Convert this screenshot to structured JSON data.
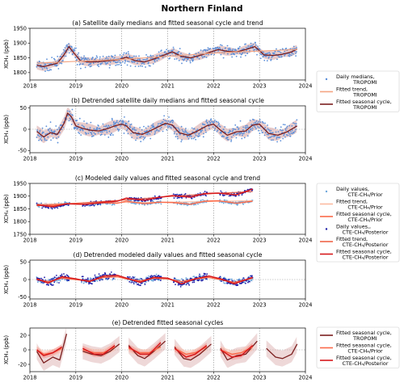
{
  "figure_title": "Northern Finland",
  "colors": {
    "tropomi_points": "#5b8fd9",
    "tropomi_trend": "#f4a582",
    "tropomi_cycle": "#7b1e1e",
    "tropomi_band": "#d9a8a8",
    "prior_points": "#6fa8dc",
    "prior_trend": "#fcbba1",
    "prior_cycle": "#fb6a4a",
    "posterior_points": "#1f1fa8",
    "posterior_trend": "#ef6548",
    "posterior_cycle": "#d7191c"
  },
  "legends": {
    "a": [
      {
        "kind": "points",
        "label": "Daily medians,",
        "label2": "TROPOMI"
      },
      {
        "kind": "trend",
        "label": "Fitted trend,",
        "label2": "TROPOMI"
      },
      {
        "kind": "cycle",
        "label": "Fitted seasonal cycle,",
        "label2": "TROPOMI"
      }
    ],
    "c": [
      {
        "kind": "prior_points",
        "label": "Daily values,",
        "label2": "CTE-CH₄/Prior"
      },
      {
        "kind": "prior_trend",
        "label": "Fitted trend,",
        "label2": "CTE-CH₄/Prior"
      },
      {
        "kind": "prior_cycle",
        "label": "Fitted seasonal cycle,",
        "label2": "CTE-CH₄/Prior"
      },
      {
        "kind": "post_points",
        "label": "Daily values,,",
        "label2": "CTE-CH₄/Posterior"
      },
      {
        "kind": "post_trend",
        "label": "Fitted trend,",
        "label2": "CTE-CH₄/Posterior"
      },
      {
        "kind": "post_cycle",
        "label": "Fitted seasonal cycle,",
        "label2": "CTE-CH₄/Posterior"
      }
    ],
    "e": [
      {
        "kind": "cycle",
        "label": "Fitted seasonal cycle,",
        "label2": "TROPOMI"
      },
      {
        "kind": "prior_cycle",
        "label": "Fitted seasonal cycle,",
        "label2": "CTE-CH₄/Prior"
      },
      {
        "kind": "post_cycle",
        "label": "Fitted seasonal cycle,",
        "label2": "CTE-CH₄/Posterior"
      }
    ]
  },
  "chart_data": [
    {
      "id": "a",
      "type": "scatter",
      "title": "(a) Satellite daily medians and fitted seasonal cycle and trend",
      "ylabel": "XCH₄ (ppb)",
      "xlim": [
        2018,
        2024
      ],
      "ylim": [
        1775,
        1950
      ],
      "xticks": [
        2018,
        2019,
        2020,
        2021,
        2022,
        2023,
        2024
      ],
      "yticks": [
        1800,
        1850,
        1900,
        1950
      ],
      "vlines": [
        2019,
        2020,
        2021,
        2022,
        2023
      ],
      "series": [
        {
          "name": "Fitted seasonal cycle, TROPOMI",
          "kind": "cycle",
          "x": [
            2018.15,
            2018.3,
            2018.45,
            2018.6,
            2018.75,
            2018.85,
            2018.95,
            2019.1,
            2019.3,
            2019.5,
            2019.7,
            2019.9,
            2020.1,
            2020.3,
            2020.5,
            2020.7,
            2020.9,
            2021.1,
            2021.3,
            2021.5,
            2021.7,
            2021.9,
            2022.1,
            2022.3,
            2022.5,
            2022.7,
            2022.9,
            2023.1,
            2023.3,
            2023.5,
            2023.7,
            2023.82
          ],
          "y": [
            1825,
            1820,
            1826,
            1832,
            1862,
            1888,
            1868,
            1840,
            1836,
            1837,
            1840,
            1843,
            1852,
            1840,
            1836,
            1846,
            1858,
            1870,
            1855,
            1850,
            1858,
            1868,
            1878,
            1872,
            1870,
            1878,
            1888,
            1860,
            1858,
            1862,
            1870,
            1880
          ]
        },
        {
          "name": "Fitted trend, TROPOMI",
          "kind": "trend",
          "x": [
            2018.15,
            2019.0,
            2020.0,
            2021.0,
            2022.0,
            2023.0,
            2023.82
          ],
          "y": [
            1832,
            1838,
            1845,
            1855,
            1866,
            1873,
            1878
          ]
        }
      ]
    },
    {
      "id": "b",
      "type": "scatter",
      "title": "(b) Detrended satellite daily medians and fitted seasonal cycle",
      "ylabel": "XCH₄ (ppb)",
      "xlim": [
        2018,
        2024
      ],
      "ylim": [
        -55,
        55
      ],
      "xticks": [
        2018,
        2019,
        2020,
        2021,
        2022,
        2023,
        2024
      ],
      "yticks": [
        -50,
        0,
        50
      ],
      "vlines": [
        2019,
        2020,
        2021,
        2022,
        2023
      ],
      "series": [
        {
          "name": "Fitted seasonal cycle, TROPOMI",
          "kind": "cycle",
          "x": [
            2018.15,
            2018.3,
            2018.45,
            2018.6,
            2018.75,
            2018.82,
            2018.9,
            2019.0,
            2019.15,
            2019.3,
            2019.5,
            2019.7,
            2019.85,
            2020.0,
            2020.1,
            2020.25,
            2020.45,
            2020.65,
            2020.8,
            2020.95,
            2021.1,
            2021.25,
            2021.45,
            2021.65,
            2021.85,
            2022.0,
            2022.15,
            2022.3,
            2022.5,
            2022.7,
            2022.85,
            2023.0,
            2023.2,
            2023.4,
            2023.6,
            2023.82
          ],
          "y": [
            -5,
            -18,
            -8,
            -12,
            15,
            38,
            30,
            8,
            2,
            -2,
            -4,
            2,
            8,
            12,
            8,
            -8,
            -12,
            -2,
            6,
            14,
            10,
            -8,
            -14,
            -4,
            8,
            12,
            -2,
            -14,
            -6,
            -4,
            10,
            12,
            -10,
            -14,
            -6,
            8
          ]
        }
      ]
    },
    {
      "id": "c",
      "type": "scatter",
      "title": "(c) Modeled daily values and fitted seasonal cycle and trend",
      "ylabel": "XCH₄ (ppb)",
      "xlim": [
        2018,
        2024
      ],
      "ylim": [
        1750,
        1950
      ],
      "xticks": [
        2018,
        2019,
        2020,
        2021,
        2022,
        2023,
        2024
      ],
      "yticks": [
        1750,
        1800,
        1850,
        1900,
        1950
      ],
      "vlines": [
        2019,
        2020,
        2021,
        2022,
        2023
      ],
      "series": [
        {
          "name": "Fitted trend, CTE-CH₄/Prior",
          "kind": "prior_trend",
          "x": [
            2018.15,
            2019.0,
            2020.0,
            2021.0,
            2022.0,
            2022.85
          ],
          "y": [
            1868,
            1872,
            1875,
            1876,
            1879,
            1882
          ]
        },
        {
          "name": "Fitted trend, CTE-CH₄/Posterior",
          "kind": "post_trend",
          "x": [
            2018.15,
            2019.0,
            2020.0,
            2021.0,
            2022.0,
            2022.85
          ],
          "y": [
            1862,
            1872,
            1884,
            1898,
            1910,
            1918
          ]
        },
        {
          "name": "Fitted seasonal cycle, CTE-CH₄/Prior",
          "kind": "prior_cycle",
          "x": [
            2018.15,
            2018.5,
            2018.8,
            2019.2,
            2019.6,
            2019.9,
            2020.1,
            2020.5,
            2020.8,
            2021.1,
            2021.5,
            2021.8,
            2022.1,
            2022.5,
            2022.85
          ],
          "y": [
            1866,
            1862,
            1870,
            1868,
            1874,
            1872,
            1880,
            1870,
            1876,
            1875,
            1868,
            1880,
            1882,
            1872,
            1880
          ]
        },
        {
          "name": "Fitted seasonal cycle, CTE-CH₄/Posterior",
          "kind": "post_cycle",
          "x": [
            2018.15,
            2018.5,
            2018.8,
            2019.2,
            2019.6,
            2019.9,
            2020.1,
            2020.5,
            2020.8,
            2021.1,
            2021.5,
            2021.8,
            2022.1,
            2022.5,
            2022.85
          ],
          "y": [
            1866,
            1858,
            1870,
            1868,
            1876,
            1880,
            1892,
            1884,
            1895,
            1902,
            1896,
            1910,
            1912,
            1905,
            1928
          ]
        }
      ]
    },
    {
      "id": "d",
      "type": "scatter",
      "title": "(d) Detrended modeled daily values and fitted seasonal cycle",
      "ylabel": "XCH₄ (ppb)",
      "xlim": [
        2018,
        2024
      ],
      "ylim": [
        -55,
        55
      ],
      "xticks": [
        2018,
        2019,
        2020,
        2021,
        2022,
        2023,
        2024
      ],
      "yticks": [
        -50,
        0,
        50
      ],
      "vlines": [
        2019,
        2020,
        2021,
        2022,
        2023
      ],
      "series": [
        {
          "name": "Fitted seasonal cycle, CTE-CH₄/Prior",
          "kind": "prior_cycle",
          "x": [
            2018.15,
            2018.4,
            2018.7,
            2019.0,
            2019.3,
            2019.6,
            2019.9,
            2020.1,
            2020.4,
            2020.7,
            2021.0,
            2021.3,
            2021.6,
            2021.9,
            2022.15,
            2022.45,
            2022.85
          ],
          "y": [
            0,
            -6,
            4,
            0,
            -4,
            6,
            8,
            2,
            -4,
            4,
            2,
            -6,
            2,
            6,
            0,
            -8,
            4
          ]
        },
        {
          "name": "Fitted seasonal cycle, CTE-CH₄/Posterior",
          "kind": "post_cycle",
          "x": [
            2018.15,
            2018.4,
            2018.7,
            2019.0,
            2019.3,
            2019.6,
            2019.9,
            2020.1,
            2020.4,
            2020.7,
            2021.0,
            2021.3,
            2021.6,
            2021.9,
            2022.15,
            2022.45,
            2022.85
          ],
          "y": [
            2,
            -10,
            8,
            2,
            -6,
            10,
            12,
            4,
            -8,
            6,
            4,
            -12,
            2,
            10,
            2,
            -12,
            6
          ]
        }
      ]
    },
    {
      "id": "e",
      "type": "line",
      "title": "(e) Detrended fitted seasonal cycles",
      "ylabel": "XCH₄ (ppb)",
      "xlim": [
        2018,
        2024
      ],
      "ylim": [
        -30,
        30
      ],
      "xticks": [
        2018,
        2019,
        2020,
        2021,
        2022,
        2023,
        2024
      ],
      "yticks": [
        -20,
        0,
        20
      ],
      "vlines": [
        2019,
        2020,
        2021,
        2022,
        2023
      ],
      "series": [
        {
          "name": "Fitted seasonal cycle, TROPOMI",
          "kind": "cycle",
          "segments": [
            {
              "x": [
                2018.15,
                2018.3,
                2018.5,
                2018.65,
                2018.8
              ],
              "y": [
                -2,
                -18,
                -10,
                -14,
                22
              ]
            },
            {
              "x": [
                2019.15,
                2019.35,
                2019.55,
                2019.75,
                2019.95
              ],
              "y": [
                -2,
                -6,
                -8,
                -2,
                8
              ]
            },
            {
              "x": [
                2020.15,
                2020.35,
                2020.5,
                2020.7,
                2020.95
              ],
              "y": [
                6,
                -8,
                -12,
                -2,
                12
              ]
            },
            {
              "x": [
                2021.15,
                2021.35,
                2021.5,
                2021.7,
                2021.95
              ],
              "y": [
                4,
                -12,
                -14,
                -6,
                8
              ]
            },
            {
              "x": [
                2022.15,
                2022.3,
                2022.5,
                2022.7,
                2022.95
              ],
              "y": [
                2,
                -14,
                -8,
                -6,
                12
              ]
            },
            {
              "x": [
                2023.15,
                2023.35,
                2023.5,
                2023.7,
                2023.82
              ],
              "y": [
                2,
                -10,
                -12,
                -6,
                8
              ]
            }
          ]
        },
        {
          "name": "Fitted seasonal cycle, CTE-CH₄/Prior",
          "kind": "prior_cycle",
          "segments": [
            {
              "x": [
                2018.15,
                2018.3,
                2018.5,
                2018.7
              ],
              "y": [
                0,
                -6,
                -4,
                2
              ]
            },
            {
              "x": [
                2019.15,
                2019.4,
                2019.6,
                2019.85
              ],
              "y": [
                0,
                -4,
                -4,
                4
              ]
            },
            {
              "x": [
                2020.15,
                2020.4,
                2020.6,
                2020.85
              ],
              "y": [
                2,
                -4,
                -4,
                4
              ]
            },
            {
              "x": [
                2021.15,
                2021.4,
                2021.6,
                2021.85
              ],
              "y": [
                2,
                -6,
                -4,
                4
              ]
            },
            {
              "x": [
                2022.15,
                2022.4,
                2022.6,
                2022.85
              ],
              "y": [
                0,
                -6,
                -4,
                4
              ]
            }
          ]
        },
        {
          "name": "Fitted seasonal cycle, CTE-CH₄/Posterior",
          "kind": "post_cycle",
          "segments": [
            {
              "x": [
                2018.15,
                2018.3,
                2018.5,
                2018.7
              ],
              "y": [
                0,
                -8,
                -4,
                4
              ]
            },
            {
              "x": [
                2019.15,
                2019.4,
                2019.6,
                2019.85
              ],
              "y": [
                2,
                -6,
                -6,
                6
              ]
            },
            {
              "x": [
                2020.15,
                2020.4,
                2020.6,
                2020.85
              ],
              "y": [
                4,
                -6,
                -6,
                10
              ]
            },
            {
              "x": [
                2021.15,
                2021.4,
                2021.6,
                2021.85
              ],
              "y": [
                2,
                -10,
                -6,
                6
              ]
            },
            {
              "x": [
                2022.15,
                2022.4,
                2022.6,
                2022.85
              ],
              "y": [
                0,
                -10,
                -8,
                6
              ]
            }
          ]
        }
      ]
    }
  ]
}
